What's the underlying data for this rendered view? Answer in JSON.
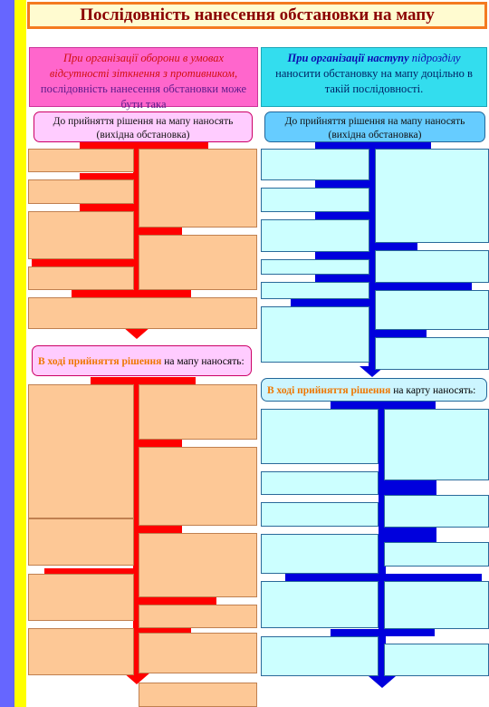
{
  "title": "Послідовність нанесення обстановки на мапу",
  "left": {
    "header_italic": "При організації оборони в умовах відсутності зіткнення з противником,",
    "header_rest": "послідовність нанесення обстановки може бути така",
    "caption": "До прийняття рішення на мапу наносять (вихідна обстановка)",
    "sub_highlight": "В ході прийняття рішення",
    "sub_rest": "на мапу наносять:"
  },
  "right": {
    "header_bold": "При організації наступу",
    "header_italic": "підрозділу",
    "header_rest": "наносити обстановку на мапу доцільно в такій послідовності.",
    "caption": "До прийняття рішення на мапу наносять (вихідна обстановка)",
    "sub_highlight": "В ході прийняття рішення",
    "sub_rest": "на карту наносять:"
  },
  "colors": {
    "left_stripe": "#6666ff",
    "yellow_stripe": "#ffff00",
    "left_arrows": "#ff0000",
    "right_arrows": "#0000dd",
    "left_boxes": "#fdc896",
    "right_boxes": "#ccffff"
  }
}
